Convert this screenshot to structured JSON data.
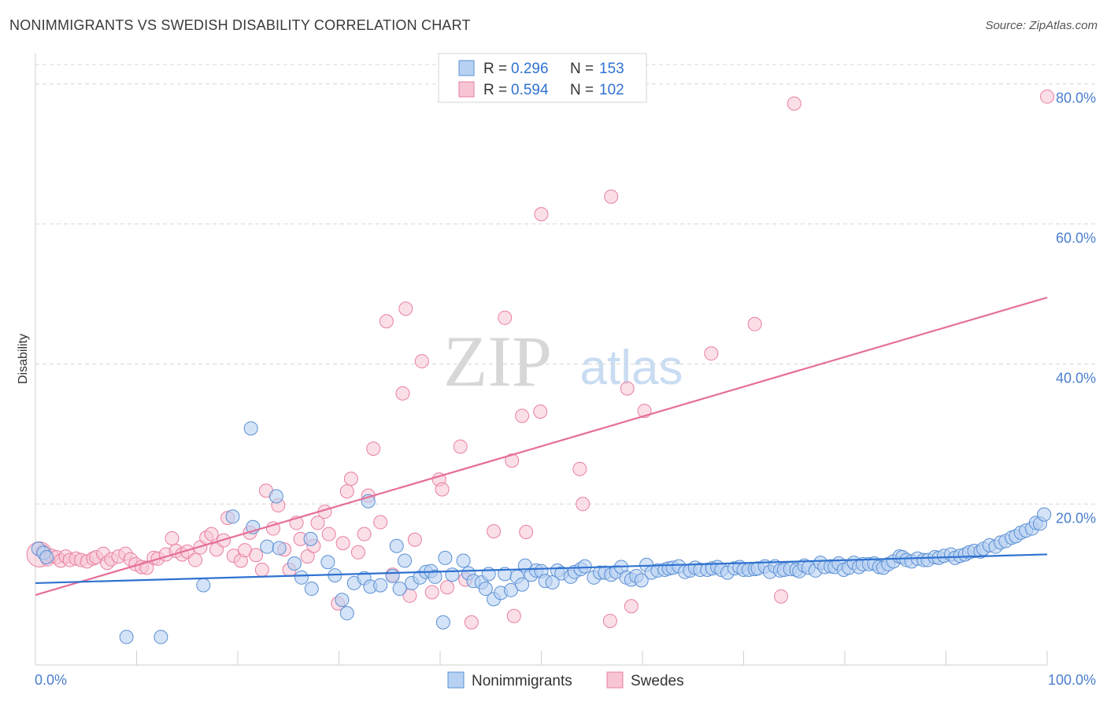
{
  "header": {
    "title": "NONIMMIGRANTS VS SWEDISH DISABILITY CORRELATION CHART",
    "source": "Source: ZipAtlas.com"
  },
  "watermark": {
    "zip": "ZIP",
    "atlas": "atlas"
  },
  "colors": {
    "blue_fill": "#b7d1f2",
    "blue_stroke": "#5b90d4",
    "blue_line": "#2f72d0",
    "pink_fill": "#f7c5d4",
    "pink_stroke": "#e87fa1",
    "pink_line": "#e56f98",
    "tick_label": "#4a7fd0",
    "grid": "#d8d8d8"
  },
  "legend_top": {
    "entries": [
      {
        "r_label": "R = ",
        "r_value": "0.296",
        "n_label": "N = ",
        "n_value": "153"
      },
      {
        "r_label": "R = ",
        "r_value": "0.594",
        "n_label": "N = ",
        "n_value": "102"
      }
    ]
  },
  "legend_bottom": {
    "items": [
      "Nonimmigrants",
      "Swedes"
    ]
  },
  "chart_data": {
    "type": "scatter",
    "title": "NONIMMIGRANTS VS SWEDISH DISABILITY CORRELATION CHART",
    "xlabel": "",
    "ylabel": "Disability",
    "xlim": [
      0,
      100
    ],
    "ylim": [
      -3,
      83
    ],
    "x_tick_labels": [
      "0.0%",
      "100.0%"
    ],
    "y_ticks": [
      20,
      40,
      60,
      80
    ],
    "y_tick_labels": [
      "20.0%",
      "40.0%",
      "60.0%",
      "80.0%"
    ],
    "grid": true,
    "legend_position": "top-center",
    "series": [
      {
        "name": "Nonimmigrants",
        "R": 0.296,
        "N": 153,
        "trend": {
          "x": [
            0,
            100
          ],
          "y": [
            8.7,
            12.8
          ]
        },
        "points": [
          [
            0.3,
            13.6
          ],
          [
            0.8,
            13.0
          ],
          [
            1.1,
            12.4
          ],
          [
            9,
            1.0
          ],
          [
            12.4,
            1.0
          ],
          [
            16.6,
            8.4
          ],
          [
            21.3,
            30.8
          ],
          [
            19.5,
            18.2
          ],
          [
            21.5,
            16.7
          ],
          [
            23.8,
            21.1
          ],
          [
            22.9,
            13.9
          ],
          [
            24.1,
            13.7
          ],
          [
            25.6,
            11.5
          ],
          [
            26.3,
            9.5
          ],
          [
            27.2,
            15.0
          ],
          [
            27.3,
            7.9
          ],
          [
            28.9,
            11.7
          ],
          [
            29.6,
            9.8
          ],
          [
            30.3,
            6.3
          ],
          [
            30.8,
            4.4
          ],
          [
            31.5,
            8.7
          ],
          [
            32.5,
            9.4
          ],
          [
            32.9,
            20.4
          ],
          [
            33.1,
            8.2
          ],
          [
            34.1,
            8.4
          ],
          [
            35.3,
            9.7
          ],
          [
            35.7,
            14.0
          ],
          [
            36.0,
            7.9
          ],
          [
            36.5,
            11.9
          ],
          [
            37.2,
            8.7
          ],
          [
            38.0,
            9.5
          ],
          [
            38.6,
            10.3
          ],
          [
            39.1,
            10.4
          ],
          [
            39.5,
            9.6
          ],
          [
            40.3,
            3.1
          ],
          [
            40.5,
            12.3
          ],
          [
            41.2,
            9.9
          ],
          [
            42.3,
            11.9
          ],
          [
            42.8,
            10.1
          ],
          [
            43.3,
            9.0
          ],
          [
            44.1,
            8.8
          ],
          [
            44.5,
            7.9
          ],
          [
            44.8,
            10.0
          ],
          [
            45.3,
            6.4
          ],
          [
            46.0,
            7.3
          ],
          [
            46.4,
            10.0
          ],
          [
            47.0,
            7.7
          ],
          [
            47.6,
            9.6
          ],
          [
            48.1,
            8.5
          ],
          [
            48.4,
            11.2
          ],
          [
            49.0,
            9.9
          ],
          [
            49.5,
            10.5
          ],
          [
            50.0,
            10.4
          ],
          [
            50.4,
            9.0
          ],
          [
            51.1,
            8.8
          ],
          [
            51.6,
            10.5
          ],
          [
            52.0,
            10.1
          ],
          [
            52.9,
            9.6
          ],
          [
            53.3,
            10.3
          ],
          [
            53.9,
            10.7
          ],
          [
            54.3,
            11.1
          ],
          [
            55.2,
            9.5
          ],
          [
            55.8,
            10.2
          ],
          [
            56.3,
            10.2
          ],
          [
            56.9,
            9.9
          ],
          [
            57.4,
            10.3
          ],
          [
            57.9,
            11.0
          ],
          [
            58.4,
            9.5
          ],
          [
            58.9,
            9.2
          ],
          [
            59.4,
            9.7
          ],
          [
            59.9,
            9.1
          ],
          [
            60.4,
            11.3
          ],
          [
            60.9,
            10.2
          ],
          [
            61.5,
            10.5
          ],
          [
            62.2,
            10.6
          ],
          [
            62.6,
            10.8
          ],
          [
            63.0,
            10.9
          ],
          [
            63.6,
            11.1
          ],
          [
            64.2,
            10.3
          ],
          [
            64.7,
            10.5
          ],
          [
            65.2,
            10.9
          ],
          [
            65.7,
            10.6
          ],
          [
            66.4,
            10.6
          ],
          [
            66.9,
            10.8
          ],
          [
            67.4,
            11.0
          ],
          [
            67.8,
            10.6
          ],
          [
            68.4,
            10.2
          ],
          [
            69.1,
            10.8
          ],
          [
            69.6,
            11.0
          ],
          [
            70.0,
            10.6
          ],
          [
            70.5,
            10.6
          ],
          [
            71.1,
            10.7
          ],
          [
            71.4,
            10.8
          ],
          [
            72.1,
            11.1
          ],
          [
            72.6,
            10.3
          ],
          [
            73.1,
            11.1
          ],
          [
            73.6,
            10.5
          ],
          [
            74.0,
            10.6
          ],
          [
            74.6,
            10.7
          ],
          [
            75.2,
            10.6
          ],
          [
            75.5,
            10.4
          ],
          [
            76.0,
            11.2
          ],
          [
            76.4,
            10.9
          ],
          [
            77.1,
            10.5
          ],
          [
            77.6,
            11.6
          ],
          [
            78.0,
            11.0
          ],
          [
            78.6,
            11.1
          ],
          [
            79.0,
            11.0
          ],
          [
            79.4,
            11.5
          ],
          [
            79.9,
            10.6
          ],
          [
            80.4,
            10.9
          ],
          [
            80.9,
            11.6
          ],
          [
            81.4,
            11.0
          ],
          [
            81.8,
            11.4
          ],
          [
            82.4,
            11.4
          ],
          [
            82.9,
            11.5
          ],
          [
            83.4,
            11.0
          ],
          [
            83.8,
            10.9
          ],
          [
            84.3,
            11.4
          ],
          [
            84.8,
            11.8
          ],
          [
            85.4,
            12.5
          ],
          [
            85.7,
            12.4
          ],
          [
            86.1,
            12.0
          ],
          [
            86.6,
            11.8
          ],
          [
            87.2,
            12.2
          ],
          [
            87.8,
            12.0
          ],
          [
            88.2,
            12.0
          ],
          [
            88.9,
            12.4
          ],
          [
            89.3,
            12.3
          ],
          [
            89.8,
            12.6
          ],
          [
            90.5,
            12.8
          ],
          [
            90.9,
            12.3
          ],
          [
            91.4,
            12.6
          ],
          [
            91.9,
            12.8
          ],
          [
            92.3,
            13.1
          ],
          [
            92.8,
            13.3
          ],
          [
            93.4,
            13.2
          ],
          [
            93.7,
            13.6
          ],
          [
            94.3,
            14.1
          ],
          [
            94.9,
            13.9
          ],
          [
            95.4,
            14.5
          ],
          [
            95.9,
            14.7
          ],
          [
            96.5,
            15.2
          ],
          [
            96.9,
            15.4
          ],
          [
            97.4,
            15.9
          ],
          [
            97.9,
            16.2
          ],
          [
            98.5,
            16.5
          ],
          [
            98.9,
            17.3
          ],
          [
            99.3,
            17.2
          ],
          [
            99.7,
            18.5
          ]
        ]
      },
      {
        "name": "Swedes",
        "R": 0.594,
        "N": 102,
        "trend": {
          "x": [
            0,
            100
          ],
          "y": [
            7.0,
            49.5
          ]
        },
        "points": [
          [
            0.4,
            12.8
          ],
          [
            0.7,
            13.2
          ],
          [
            1.2,
            12.1
          ],
          [
            1.6,
            12.6
          ],
          [
            2.1,
            12.4
          ],
          [
            2.5,
            11.9
          ],
          [
            3.0,
            12.5
          ],
          [
            3.4,
            12.0
          ],
          [
            4.0,
            12.2
          ],
          [
            4.5,
            12.0
          ],
          [
            5.1,
            11.8
          ],
          [
            5.7,
            12.2
          ],
          [
            6.0,
            12.4
          ],
          [
            6.7,
            12.9
          ],
          [
            7.1,
            11.6
          ],
          [
            7.5,
            12.1
          ],
          [
            8.2,
            12.5
          ],
          [
            8.9,
            12.9
          ],
          [
            9.4,
            12.1
          ],
          [
            9.9,
            11.4
          ],
          [
            10.5,
            11.0
          ],
          [
            11.0,
            10.9
          ],
          [
            11.7,
            12.3
          ],
          [
            12.1,
            12.2
          ],
          [
            12.9,
            12.8
          ],
          [
            13.5,
            15.1
          ],
          [
            13.9,
            13.3
          ],
          [
            14.5,
            12.8
          ],
          [
            15.0,
            13.2
          ],
          [
            15.8,
            12.0
          ],
          [
            16.3,
            13.8
          ],
          [
            16.9,
            15.2
          ],
          [
            17.4,
            15.7
          ],
          [
            17.9,
            13.5
          ],
          [
            18.6,
            14.8
          ],
          [
            19.0,
            18.0
          ],
          [
            19.6,
            12.6
          ],
          [
            20.3,
            11.9
          ],
          [
            20.7,
            13.4
          ],
          [
            21.2,
            15.9
          ],
          [
            21.8,
            12.7
          ],
          [
            22.4,
            10.6
          ],
          [
            22.8,
            21.9
          ],
          [
            23.5,
            16.5
          ],
          [
            24.0,
            19.8
          ],
          [
            24.6,
            13.5
          ],
          [
            25.1,
            10.6
          ],
          [
            25.8,
            17.3
          ],
          [
            26.2,
            15.0
          ],
          [
            26.9,
            12.5
          ],
          [
            27.5,
            14.0
          ],
          [
            27.9,
            17.3
          ],
          [
            28.6,
            18.9
          ],
          [
            29.0,
            15.7
          ],
          [
            29.9,
            5.8
          ],
          [
            30.4,
            14.4
          ],
          [
            30.8,
            21.8
          ],
          [
            31.2,
            23.6
          ],
          [
            31.9,
            13.1
          ],
          [
            32.5,
            15.7
          ],
          [
            32.9,
            21.2
          ],
          [
            33.4,
            27.9
          ],
          [
            34.1,
            17.4
          ],
          [
            34.7,
            46.1
          ],
          [
            35.3,
            9.9
          ],
          [
            36.3,
            35.8
          ],
          [
            36.6,
            47.9
          ],
          [
            37.0,
            6.9
          ],
          [
            37.5,
            14.9
          ],
          [
            38.2,
            40.4
          ],
          [
            39.2,
            7.4
          ],
          [
            39.9,
            23.5
          ],
          [
            40.2,
            22.1
          ],
          [
            40.7,
            8.1
          ],
          [
            42.0,
            28.2
          ],
          [
            42.5,
            9.2
          ],
          [
            43.1,
            3.1
          ],
          [
            45.3,
            16.1
          ],
          [
            46.4,
            46.6
          ],
          [
            47.1,
            26.2
          ],
          [
            47.3,
            4.0
          ],
          [
            48.1,
            32.6
          ],
          [
            48.5,
            16.0
          ],
          [
            49.9,
            33.2
          ],
          [
            50.0,
            61.4
          ],
          [
            53.8,
            25.0
          ],
          [
            54.1,
            20.0
          ],
          [
            56.8,
            3.3
          ],
          [
            56.9,
            63.9
          ],
          [
            58.5,
            36.5
          ],
          [
            58.9,
            5.4
          ],
          [
            60.2,
            33.3
          ],
          [
            66.8,
            41.5
          ],
          [
            71.1,
            45.7
          ],
          [
            73.7,
            6.8
          ],
          [
            75.0,
            77.2
          ],
          [
            100.0,
            78.2
          ]
        ]
      }
    ]
  }
}
